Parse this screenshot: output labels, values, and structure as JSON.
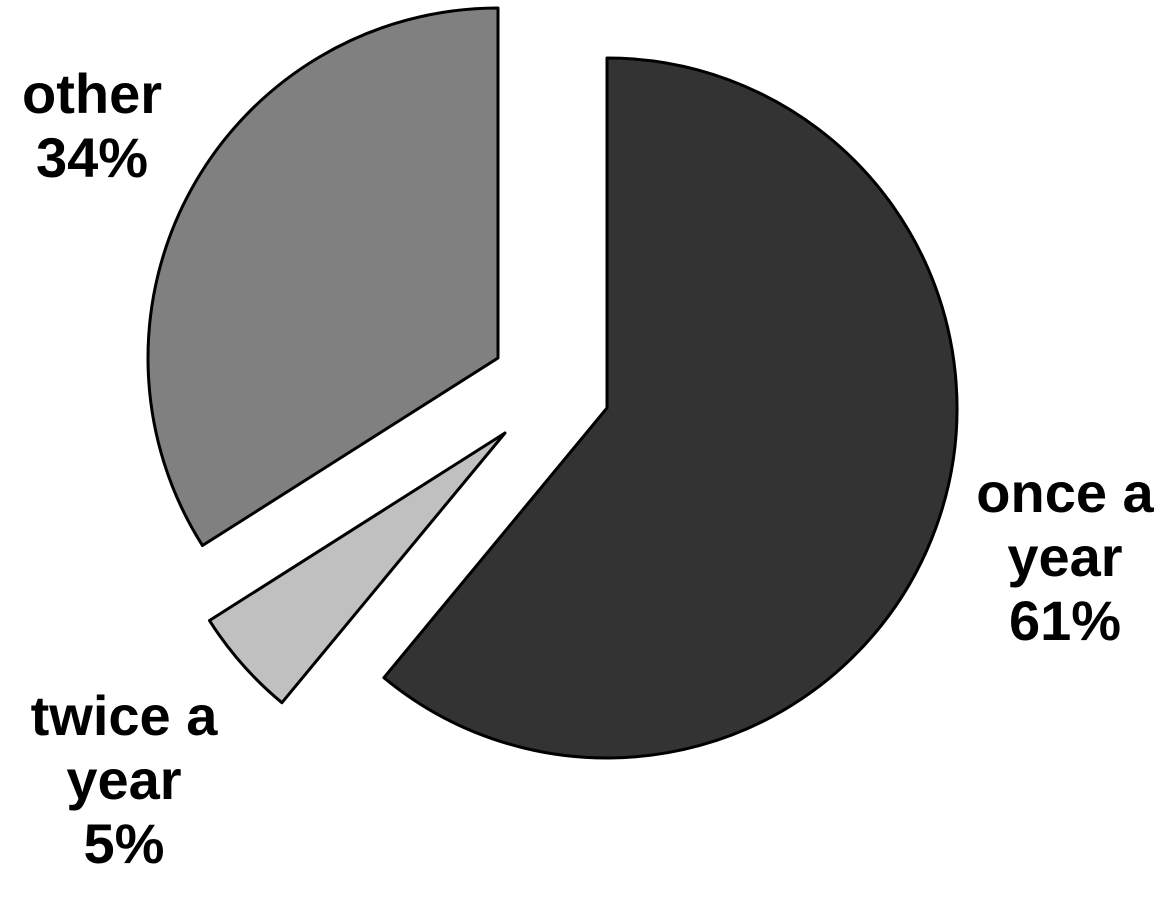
{
  "chart_data": {
    "type": "pie",
    "exploded": true,
    "slices": [
      {
        "label_lines": [
          "once a",
          "year"
        ],
        "percent_label": "61%",
        "value": 61,
        "color": "#333333"
      },
      {
        "label_lines": [
          "twice a",
          "year"
        ],
        "percent_label": "5%",
        "value": 5,
        "color": "#c0c0c0"
      },
      {
        "label_lines": [
          "other"
        ],
        "percent_label": "34%",
        "value": 34,
        "color": "#808080"
      }
    ]
  }
}
